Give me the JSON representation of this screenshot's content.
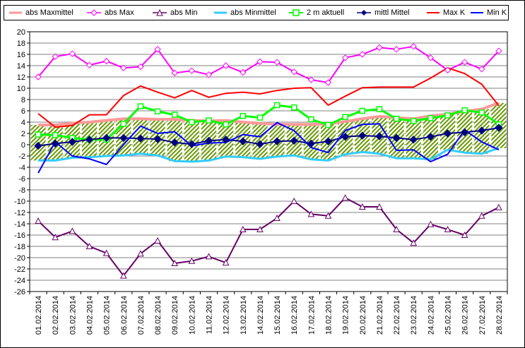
{
  "chart_data": {
    "type": "line",
    "title": "",
    "xlabel": "",
    "ylabel": "",
    "ylim": [
      -26,
      20
    ],
    "yticks": [
      20,
      18,
      16,
      14,
      12,
      10,
      8,
      6,
      4,
      2,
      0,
      -2,
      -4,
      -6,
      -8,
      -10,
      -12,
      -14,
      -16,
      -18,
      -20,
      -22,
      -24,
      -26
    ],
    "grid": "horizontal",
    "legend": "top",
    "categories": [
      "01.02.2014",
      "02.02.2014",
      "03.02.2014",
      "04.02.2014",
      "05.02.2014",
      "06.02.2014",
      "07.02.2014",
      "08.02.2014",
      "09.02.2014",
      "10.02.2014",
      "11.02.2014",
      "12.02.2014",
      "13.02.2014",
      "14.02.2014",
      "15.02.2014",
      "16.02.2014",
      "17.02.2014",
      "18.02.2014",
      "19.02.2014",
      "20.02.2014",
      "21.02.2014",
      "22.02.2014",
      "23.02.2014",
      "24.02.2014",
      "25.02.2014",
      "26.02.2014",
      "27.02.2014",
      "28.02.2014"
    ],
    "series": [
      {
        "name": "abs Maxmittel",
        "color": "#ff9999",
        "marker": "none",
        "width": 4,
        "values": [
          3.5,
          3.5,
          3.8,
          4.0,
          4.3,
          4.6,
          4.6,
          4.5,
          4.5,
          4.3,
          4.2,
          4.3,
          4.0,
          3.8,
          3.6,
          3.6,
          3.6,
          3.7,
          4.1,
          4.6,
          5.0,
          4.8,
          4.6,
          5.1,
          5.4,
          5.9,
          6.3,
          7.4
        ]
      },
      {
        "name": "abs Max",
        "color": "#ff00ff",
        "marker": "diamond-open",
        "width": 2,
        "values": [
          12.0,
          15.6,
          16.1,
          14.1,
          14.8,
          13.6,
          13.8,
          16.9,
          12.7,
          13.1,
          12.4,
          14.0,
          12.8,
          14.7,
          14.6,
          12.9,
          11.5,
          11.0,
          15.4,
          16.0,
          17.2,
          16.9,
          17.4,
          15.4,
          13.2,
          14.6,
          13.4,
          16.6
        ]
      },
      {
        "name": "abs Min",
        "color": "#660066",
        "marker": "triangle-open",
        "width": 2,
        "values": [
          -13.5,
          -16.4,
          -15.3,
          -18.0,
          -19.2,
          -23.2,
          -19.3,
          -17.0,
          -21.0,
          -20.6,
          -19.8,
          -20.9,
          -15.0,
          -15.0,
          -13.0,
          -10.0,
          -12.3,
          -12.6,
          -9.4,
          -11.0,
          -11.0,
          -15.0,
          -17.4,
          -14.1,
          -15.0,
          -16.0,
          -12.6,
          -11.1
        ]
      },
      {
        "name": "abs Minmittel",
        "color": "#33ccff",
        "marker": "none",
        "width": 3,
        "values": [
          -2.8,
          -2.8,
          -2.3,
          -2.2,
          -2.0,
          -1.9,
          -1.6,
          -1.9,
          -2.9,
          -3.0,
          -2.8,
          -2.1,
          -2.2,
          -2.5,
          -2.1,
          -1.9,
          -2.6,
          -2.8,
          -1.7,
          -1.3,
          -1.6,
          -2.4,
          -2.4,
          -2.6,
          -0.9,
          -1.4,
          -1.6,
          -0.6
        ]
      },
      {
        "name": "2 m aktuell",
        "color": "#00ff00",
        "marker": "square-open",
        "width": 3,
        "values": [
          1.8,
          1.7,
          1.2,
          0.9,
          0.9,
          3.7,
          6.8,
          5.9,
          5.3,
          4.0,
          4.3,
          3.6,
          5.1,
          4.8,
          7.0,
          6.6,
          4.5,
          3.5,
          4.9,
          6.0,
          6.3,
          4.6,
          4.2,
          4.7,
          5.2,
          6.1,
          5.7,
          3.6
        ]
      },
      {
        "name": "mittl Mittel",
        "color": "#000080",
        "marker": "diamond",
        "width": 2,
        "values": [
          -0.2,
          0.2,
          0.5,
          0.9,
          1.2,
          1.2,
          1.1,
          1.0,
          0.4,
          0.1,
          0.7,
          0.9,
          0.6,
          0.1,
          0.6,
          0.7,
          0.2,
          0.6,
          1.4,
          1.6,
          1.5,
          1.2,
          0.9,
          1.4,
          2.0,
          2.2,
          2.5,
          3.0
        ]
      },
      {
        "name": "Max K",
        "color": "#ff0000",
        "marker": "none",
        "width": 2,
        "values": [
          5.5,
          3.1,
          3.4,
          5.3,
          5.3,
          8.7,
          10.4,
          9.3,
          8.3,
          9.6,
          8.4,
          9.1,
          9.3,
          9.0,
          9.6,
          10.0,
          10.1,
          7.0,
          8.6,
          10.1,
          10.2,
          10.2,
          10.2,
          11.8,
          13.6,
          12.6,
          10.7,
          6.9
        ]
      },
      {
        "name": "Min K",
        "color": "#0000ff",
        "marker": "none",
        "width": 2,
        "values": [
          -5.0,
          0.5,
          -2.0,
          -2.5,
          -3.5,
          0.0,
          3.3,
          2.0,
          2.3,
          -0.2,
          0.3,
          0.4,
          1.8,
          1.4,
          3.9,
          2.5,
          -0.5,
          -1.4,
          2.5,
          3.6,
          3.7,
          -1.0,
          -0.9,
          -3.0,
          -1.7,
          2.6,
          0.5,
          -0.9
        ]
      }
    ]
  }
}
